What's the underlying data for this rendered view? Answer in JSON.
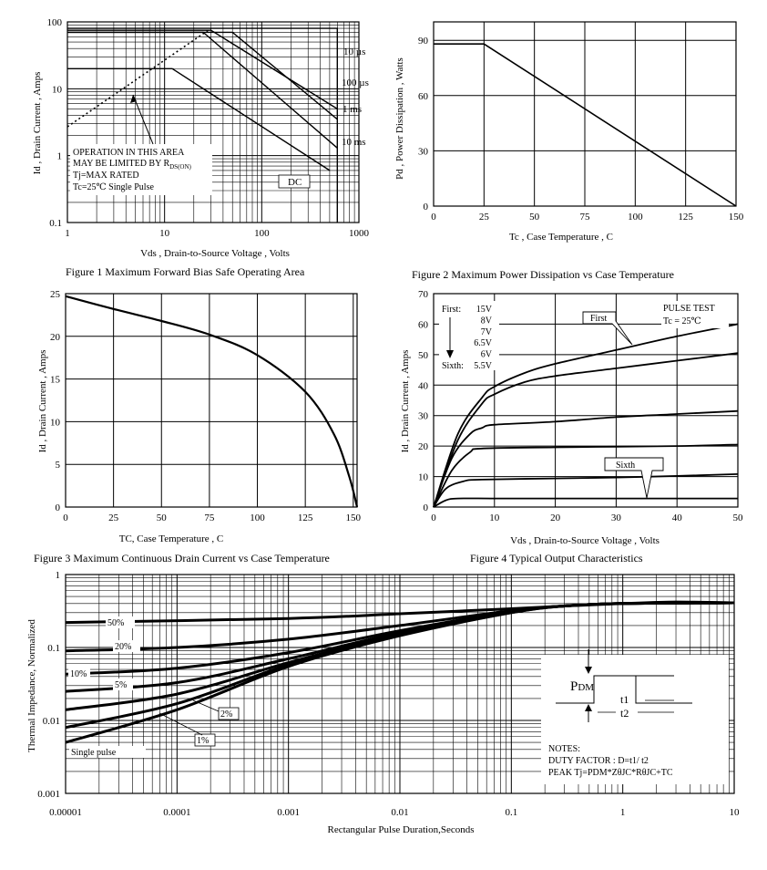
{
  "chart_data": [
    {
      "id": "fig1",
      "type": "line",
      "caption": "Figure    1    Maximum Forward Bias Safe Operating Area",
      "xlabel": "Vds , Drain-to-Source Voltage , Volts",
      "ylabel": "Id , Drain Current , Amps",
      "xscale": "log",
      "yscale": "log",
      "xlim": [
        1,
        1000
      ],
      "ylim": [
        0.1,
        100
      ],
      "xticks": [
        "1",
        "10",
        "100",
        "1000"
      ],
      "yticks": [
        "0.1",
        "1",
        "10",
        "100"
      ],
      "grid": true,
      "series": [
        {
          "name": "10 µs",
          "x": [
            1,
            600,
            600
          ],
          "y": [
            80,
            80,
            0.1
          ]
        },
        {
          "name": "100 µs",
          "x": [
            1,
            30,
            600
          ],
          "y": [
            75,
            75,
            5
          ]
        },
        {
          "name": "1 ms",
          "x": [
            1,
            50,
            600
          ],
          "y": [
            70,
            70,
            3.5
          ]
        },
        {
          "name": "10 ms",
          "x": [
            1,
            25,
            600
          ],
          "y": [
            70,
            70,
            1.3
          ]
        },
        {
          "name": "DC",
          "x": [
            1,
            12,
            500
          ],
          "y": [
            20,
            20,
            0.6
          ]
        },
        {
          "name": "Rds(on) limit",
          "style": "dotted",
          "x": [
            1,
            30
          ],
          "y": [
            2.7,
            80
          ]
        }
      ],
      "curve_labels": [
        "10 µs",
        "100 µs",
        "1 ms",
        "10 ms",
        "DC"
      ],
      "annotation": [
        "OPERATION IN THIS AREA",
        "MAY BE LIMITED BY R",
        "DS(ON)",
        "Tj=MAX RATED",
        "Tc=25℃  Single Pulse"
      ]
    },
    {
      "id": "fig2",
      "type": "line",
      "caption": "Figure    2    Maximum Power Dissipation vs Case Temperature",
      "xlabel": "Tc , Case Temperature , C",
      "ylabel": "Pd , Power Dissipation , Watts",
      "xlim": [
        0,
        150
      ],
      "ylim": [
        0,
        100
      ],
      "xticks": [
        "0",
        "25",
        "50",
        "75",
        "100",
        "125",
        "150"
      ],
      "yticks": [
        "0",
        "30",
        "60",
        "90"
      ],
      "grid": true,
      "series": [
        {
          "x": [
            0,
            25,
            150
          ],
          "y": [
            88,
            88,
            0
          ]
        }
      ]
    },
    {
      "id": "fig3",
      "type": "line",
      "caption": "Figure    3    Maximum Continuous Drain Current vs Case Temperature",
      "xlabel": "TC, Case Temperature , C",
      "ylabel": "Id , Drain Current , Amps",
      "xlim": [
        0,
        152
      ],
      "ylim": [
        0,
        25
      ],
      "xticks": [
        "0",
        "25",
        "50",
        "75",
        "100",
        "125",
        "150"
      ],
      "yticks": [
        "0",
        "5",
        "10",
        "15",
        "20",
        "25"
      ],
      "grid": true,
      "series": [
        {
          "x": [
            0,
            25,
            50,
            75,
            100,
            125,
            140,
            148,
            152
          ],
          "y": [
            24.7,
            23.2,
            21.8,
            20.2,
            17.8,
            13.5,
            8.5,
            3.5,
            0
          ]
        }
      ]
    },
    {
      "id": "fig4",
      "type": "line",
      "caption": "Figure    4    Typical Output Characteristics",
      "xlabel": "Vds , Drain-to-Source Voltage , Volts",
      "ylabel": "Id , Drain Current , Amps",
      "xlim": [
        0,
        50
      ],
      "ylim": [
        0,
        70
      ],
      "xticks": [
        "0",
        "10",
        "20",
        "30",
        "40",
        "50"
      ],
      "yticks": [
        "0",
        "10",
        "20",
        "30",
        "40",
        "50",
        "60",
        "70"
      ],
      "grid": true,
      "series": [
        {
          "name": "15V",
          "x": [
            0,
            4,
            8,
            10,
            15,
            20,
            30,
            40,
            50
          ],
          "y": [
            0,
            24,
            36,
            39.5,
            44,
            47,
            51.5,
            56,
            60
          ]
        },
        {
          "name": "8V",
          "x": [
            0,
            4,
            8,
            10,
            15,
            20,
            30,
            40,
            50
          ],
          "y": [
            0,
            22,
            34,
            37,
            41,
            43,
            45.5,
            48,
            50.5
          ]
        },
        {
          "name": "7V",
          "x": [
            0,
            3,
            6,
            8,
            10,
            20,
            30,
            40,
            50
          ],
          "y": [
            0,
            16,
            24,
            26,
            27,
            28,
            29.5,
            30.5,
            31.5
          ]
        },
        {
          "name": "6.5V",
          "x": [
            0,
            3,
            6,
            8,
            20,
            30,
            40,
            50
          ],
          "y": [
            0,
            12,
            18,
            19.2,
            19.6,
            19.8,
            20,
            20.5
          ]
        },
        {
          "name": "6V",
          "x": [
            0,
            2,
            5,
            8,
            20,
            30,
            40,
            50
          ],
          "y": [
            0,
            6,
            8.5,
            9,
            9.4,
            9.7,
            10.2,
            10.8
          ]
        },
        {
          "name": "5.5V",
          "x": [
            0,
            2,
            4,
            10,
            20,
            30,
            40,
            50
          ],
          "y": [
            0,
            2.2,
            2.8,
            2.8,
            2.8,
            2.8,
            2.8,
            2.8
          ]
        }
      ],
      "legend_title_first": "First:",
      "legend_title_sixth": "Sixth:",
      "legend_values": [
        "15V",
        "8V",
        "7V",
        "6.5V",
        "6V",
        "5.5V"
      ],
      "pulse_test": [
        "PULSE   TEST",
        "Tc = 25℃"
      ],
      "callout_first": "First",
      "callout_sixth": "Sixth"
    },
    {
      "id": "fig5",
      "type": "line",
      "xlabel": "Rectangular Pulse Duration,Seconds",
      "ylabel": "Thermal Impedance, Normalized",
      "xscale": "log",
      "yscale": "log",
      "xlim": [
        1e-05,
        10
      ],
      "ylim": [
        0.001,
        1
      ],
      "xticks": [
        "0.00001",
        "0.0001",
        "0.001",
        "0.01",
        "0.1",
        "1",
        "10"
      ],
      "yticks": [
        "0.001",
        "0.01",
        "0.1",
        "1"
      ],
      "grid": true,
      "series": [
        {
          "name": "50%",
          "x": [
            1e-05,
            0.001,
            0.01,
            0.1,
            0.3,
            1,
            3,
            10
          ],
          "y": [
            0.22,
            0.25,
            0.29,
            0.34,
            0.37,
            0.4,
            0.42,
            0.41
          ]
        },
        {
          "name": "20%",
          "x": [
            1e-05,
            0.0001,
            0.001,
            0.01,
            0.1,
            0.3,
            1,
            10
          ],
          "y": [
            0.09,
            0.1,
            0.13,
            0.2,
            0.32,
            0.37,
            0.4,
            0.41
          ]
        },
        {
          "name": "10%",
          "x": [
            1e-05,
            0.0001,
            0.001,
            0.01,
            0.1,
            0.3,
            1,
            10
          ],
          "y": [
            0.043,
            0.052,
            0.085,
            0.17,
            0.31,
            0.37,
            0.4,
            0.41
          ]
        },
        {
          "name": "5%",
          "x": [
            1e-05,
            0.0001,
            0.001,
            0.01,
            0.1,
            0.3,
            1,
            10
          ],
          "y": [
            0.025,
            0.033,
            0.07,
            0.16,
            0.31,
            0.37,
            0.4,
            0.41
          ]
        },
        {
          "name": "2%",
          "x": [
            1e-05,
            0.0001,
            0.001,
            0.01,
            0.1,
            0.3,
            1,
            10
          ],
          "y": [
            0.014,
            0.023,
            0.062,
            0.155,
            0.31,
            0.37,
            0.4,
            0.41
          ]
        },
        {
          "name": "1%",
          "x": [
            1e-05,
            0.0001,
            0.001,
            0.01,
            0.1,
            0.3,
            1,
            10
          ],
          "y": [
            0.008,
            0.017,
            0.058,
            0.15,
            0.3,
            0.37,
            0.4,
            0.41
          ]
        },
        {
          "name": "Single pulse",
          "x": [
            1e-05,
            0.0001,
            0.001,
            0.01,
            0.1,
            0.3,
            1,
            10
          ],
          "y": [
            0.005,
            0.014,
            0.055,
            0.145,
            0.3,
            0.37,
            0.4,
            0.41
          ]
        }
      ],
      "curve_labels": [
        "50%",
        "20%",
        "10%",
        "5%",
        "2%",
        "1%",
        "Single pulse"
      ],
      "diagram": {
        "pdm": "P",
        "pdm_sub": "DM",
        "t1": "t1",
        "t2": "t2"
      },
      "notes": [
        "NOTES:",
        "DUTY FACTOR  :  D=t1/ t2",
        "PEAK Tj=PDM*ZθJC*RθJC+TC"
      ]
    }
  ]
}
